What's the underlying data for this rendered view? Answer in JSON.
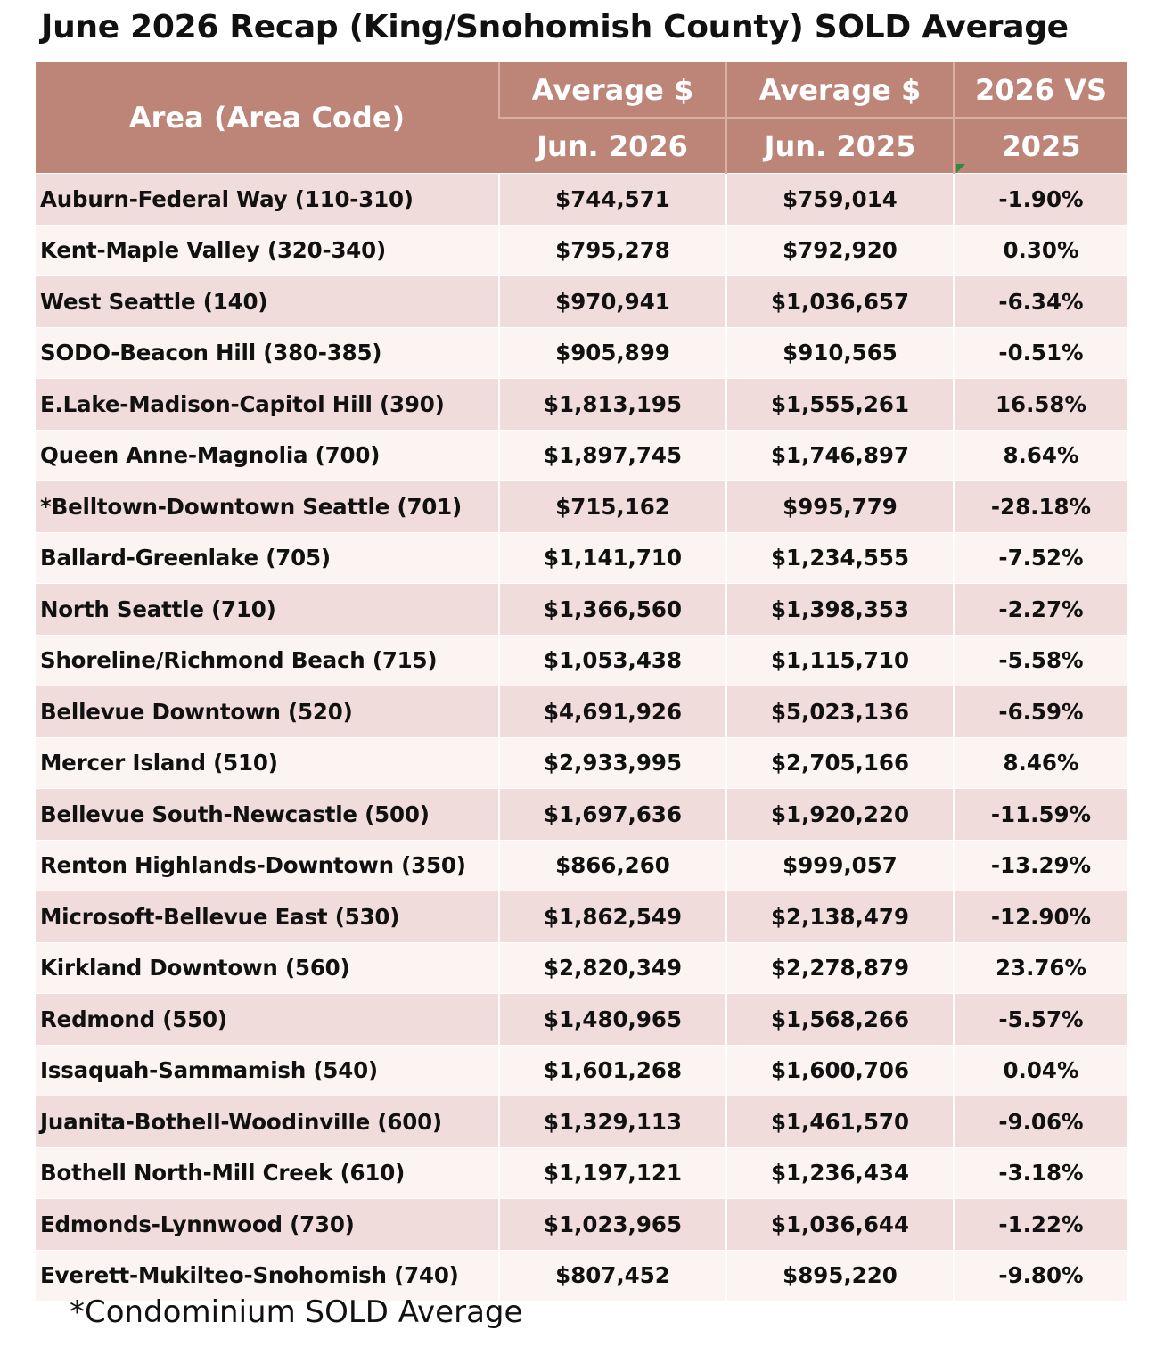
{
  "title": "June 2026 Recap (King/Snohomish County) SOLD Average",
  "table": {
    "headers": {
      "area": "Area (Area Code)",
      "avg_2026_top": "Average $",
      "avg_2026_bottom": "Jun. 2026",
      "avg_2025_top": "Average $",
      "avg_2025_bottom": "Jun. 2025",
      "change_top": "2026 VS",
      "change_bottom": "2025"
    },
    "rows": [
      {
        "area": "Auburn-Federal Way (110-310)",
        "avg_2026": "$744,571",
        "avg_2025": "$759,014",
        "change": "-1.90%"
      },
      {
        "area": "Kent-Maple Valley (320-340)",
        "avg_2026": "$795,278",
        "avg_2025": "$792,920",
        "change": "0.30%"
      },
      {
        "area": "West Seattle (140)",
        "avg_2026": "$970,941",
        "avg_2025": "$1,036,657",
        "change": "-6.34%"
      },
      {
        "area": "SODO-Beacon Hill (380-385)",
        "avg_2026": "$905,899",
        "avg_2025": "$910,565",
        "change": "-0.51%"
      },
      {
        "area": "E.Lake-Madison-Capitol Hill (390)",
        "avg_2026": "$1,813,195",
        "avg_2025": "$1,555,261",
        "change": "16.58%"
      },
      {
        "area": "Queen Anne-Magnolia (700)",
        "avg_2026": "$1,897,745",
        "avg_2025": "$1,746,897",
        "change": "8.64%"
      },
      {
        "area": "*Belltown-Downtown Seattle (701)",
        "avg_2026": "$715,162",
        "avg_2025": "$995,779",
        "change": "-28.18%"
      },
      {
        "area": "Ballard-Greenlake (705)",
        "avg_2026": "$1,141,710",
        "avg_2025": "$1,234,555",
        "change": "-7.52%"
      },
      {
        "area": "North Seattle (710)",
        "avg_2026": "$1,366,560",
        "avg_2025": "$1,398,353",
        "change": "-2.27%"
      },
      {
        "area": "Shoreline/Richmond Beach (715)",
        "avg_2026": "$1,053,438",
        "avg_2025": "$1,115,710",
        "change": "-5.58%"
      },
      {
        "area": "Bellevue Downtown (520)",
        "avg_2026": "$4,691,926",
        "avg_2025": "$5,023,136",
        "change": "-6.59%"
      },
      {
        "area": "Mercer Island (510)",
        "avg_2026": "$2,933,995",
        "avg_2025": "$2,705,166",
        "change": "8.46%"
      },
      {
        "area": "Bellevue South-Newcastle (500)",
        "avg_2026": "$1,697,636",
        "avg_2025": "$1,920,220",
        "change": "-11.59%"
      },
      {
        "area": "Renton Highlands-Downtown (350)",
        "avg_2026": "$866,260",
        "avg_2025": "$999,057",
        "change": "-13.29%"
      },
      {
        "area": "Microsoft-Bellevue East (530)",
        "avg_2026": "$1,862,549",
        "avg_2025": "$2,138,479",
        "change": "-12.90%"
      },
      {
        "area": "Kirkland Downtown (560)",
        "avg_2026": "$2,820,349",
        "avg_2025": "$2,278,879",
        "change": "23.76%"
      },
      {
        "area": "Redmond (550)",
        "avg_2026": "$1,480,965",
        "avg_2025": "$1,568,266",
        "change": "-5.57%"
      },
      {
        "area": "Issaquah-Sammamish (540)",
        "avg_2026": "$1,601,268",
        "avg_2025": "$1,600,706",
        "change": "0.04%"
      },
      {
        "area": "Juanita-Bothell-Woodinville (600)",
        "avg_2026": "$1,329,113",
        "avg_2025": "$1,461,570",
        "change": "-9.06%"
      },
      {
        "area": "Bothell North-Mill Creek (610)",
        "avg_2026": "$1,197,121",
        "avg_2025": "$1,236,434",
        "change": "-3.18%"
      },
      {
        "area": "Edmonds-Lynnwood (730)",
        "avg_2026": "$1,023,965",
        "avg_2025": "$1,036,644",
        "change": "-1.22%"
      },
      {
        "area": "Everett-Mukilteo-Snohomish (740)",
        "avg_2026": "$807,452",
        "avg_2025": "$895,220",
        "change": "-9.80%"
      }
    ]
  },
  "footnote": "*Condominium SOLD Average",
  "colors": {
    "header_bg": "#bd8478",
    "row_odd": "#f0dcda",
    "row_even": "#fbf4f3"
  }
}
